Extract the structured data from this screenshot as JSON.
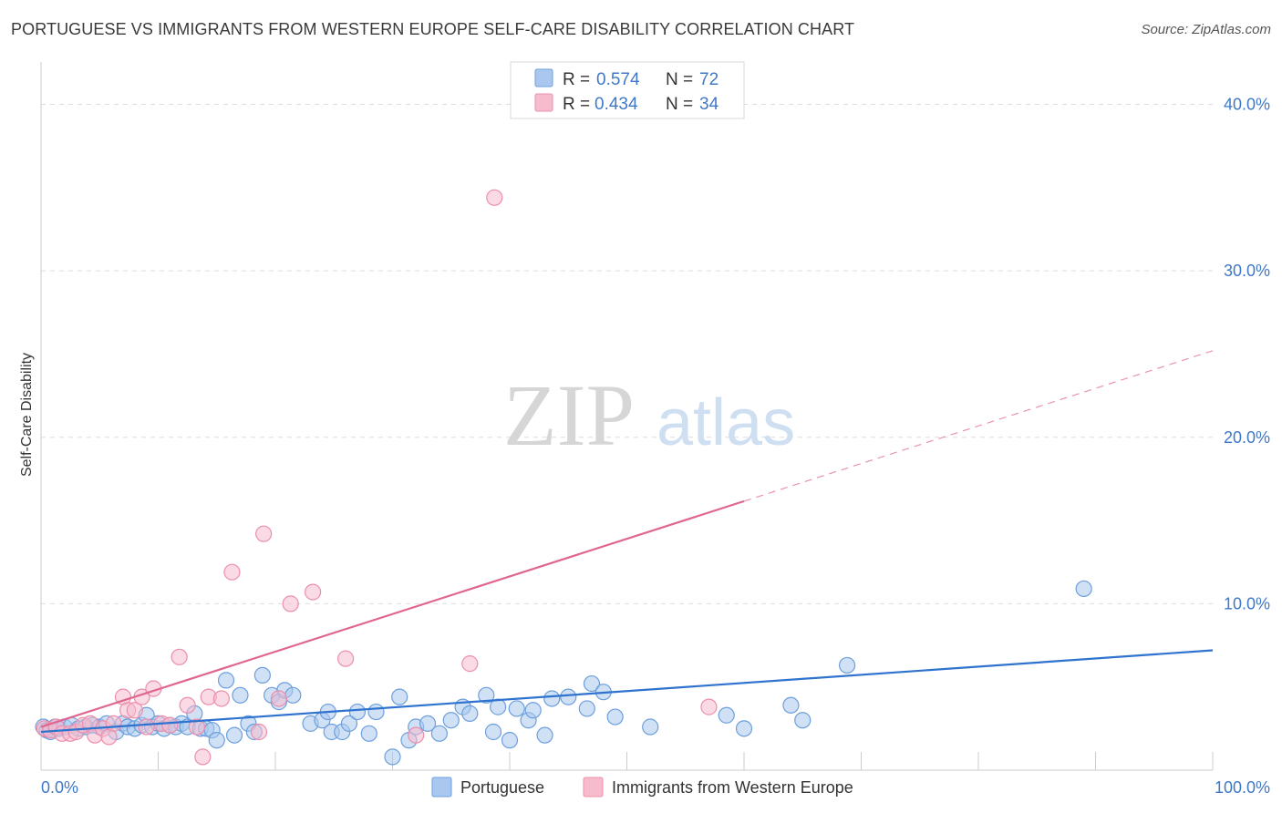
{
  "title": "PORTUGUESE VS IMMIGRANTS FROM WESTERN EUROPE SELF-CARE DISABILITY CORRELATION CHART",
  "source": "Source: ZipAtlas.com",
  "watermark": {
    "part1": "ZIP",
    "part2": "atlas"
  },
  "colors": {
    "blue_fill": "#aac8ef",
    "blue_stroke": "#6d9fdc",
    "blue_line": "#2f73cf",
    "pink_fill": "#f6bccd",
    "pink_stroke": "#ec8fab",
    "pink_line": "#e06690",
    "accent_text": "#3f78c9",
    "grid": "#dddddd"
  },
  "legend": {
    "rows": [
      {
        "r_label": "R =",
        "r_value": "0.574",
        "n_label": "N =",
        "n_value": "72",
        "color": "blue"
      },
      {
        "r_label": "R =",
        "r_value": "0.434",
        "n_label": "N =",
        "n_value": "34",
        "color": "pink"
      }
    ]
  },
  "bottom_legend": [
    {
      "label": "Portuguese",
      "color": "blue"
    },
    {
      "label": "Immigrants from Western Europe",
      "color": "pink"
    }
  ],
  "chart_data": {
    "type": "scatter",
    "title": "PORTUGUESE VS IMMIGRANTS FROM WESTERN EUROPE SELF-CARE DISABILITY CORRELATION CHART",
    "xlabel": "",
    "ylabel": "Self-Care Disability",
    "xlim": [
      0,
      100
    ],
    "ylim": [
      0,
      42
    ],
    "x_tick_labels": {
      "left": "0.0%",
      "right": "100.0%"
    },
    "y_ticks": [
      {
        "value": 10,
        "label": "10.0%"
      },
      {
        "value": 20,
        "label": "20.0%"
      },
      {
        "value": 30,
        "label": "30.0%"
      },
      {
        "value": 40,
        "label": "40.0%"
      }
    ],
    "x_minor_ticks": [
      10,
      20,
      30,
      40,
      50,
      60,
      70,
      80,
      90,
      100
    ],
    "grid": true,
    "series": [
      {
        "name": "Portuguese",
        "color": "blue",
        "R": 0.574,
        "N": 72,
        "trend": {
          "x0": 0,
          "y0": 2.3,
          "x1": 100,
          "y1": 7.2,
          "dashed_from": null
        },
        "points": [
          [
            0.2,
            2.6
          ],
          [
            0.5,
            2.4
          ],
          [
            0.8,
            2.3
          ],
          [
            1.2,
            2.6
          ],
          [
            1.5,
            2.5
          ],
          [
            2.0,
            2.6
          ],
          [
            2.6,
            2.7
          ],
          [
            3.2,
            2.5
          ],
          [
            3.8,
            2.6
          ],
          [
            4.4,
            2.7
          ],
          [
            5.0,
            2.6
          ],
          [
            5.6,
            2.8
          ],
          [
            6.4,
            2.3
          ],
          [
            7.0,
            2.8
          ],
          [
            7.4,
            2.6
          ],
          [
            8.0,
            2.5
          ],
          [
            8.6,
            2.7
          ],
          [
            9.0,
            3.3
          ],
          [
            9.5,
            2.6
          ],
          [
            10.0,
            2.8
          ],
          [
            10.5,
            2.5
          ],
          [
            11.0,
            2.7
          ],
          [
            11.5,
            2.6
          ],
          [
            12.0,
            2.8
          ],
          [
            12.5,
            2.6
          ],
          [
            13.1,
            3.4
          ],
          [
            13.6,
            2.5
          ],
          [
            14.1,
            2.5
          ],
          [
            14.6,
            2.4
          ],
          [
            15.0,
            1.8
          ],
          [
            15.8,
            5.4
          ],
          [
            16.5,
            2.1
          ],
          [
            17.0,
            4.5
          ],
          [
            17.7,
            2.8
          ],
          [
            18.2,
            2.3
          ],
          [
            18.9,
            5.7
          ],
          [
            19.7,
            4.5
          ],
          [
            20.3,
            4.1
          ],
          [
            20.8,
            4.8
          ],
          [
            21.5,
            4.5
          ],
          [
            23.0,
            2.8
          ],
          [
            24.0,
            3.0
          ],
          [
            24.5,
            3.5
          ],
          [
            24.8,
            2.3
          ],
          [
            25.7,
            2.3
          ],
          [
            26.3,
            2.8
          ],
          [
            27.0,
            3.5
          ],
          [
            28.0,
            2.2
          ],
          [
            28.6,
            3.5
          ],
          [
            30.0,
            0.8
          ],
          [
            30.6,
            4.4
          ],
          [
            31.4,
            1.8
          ],
          [
            32.0,
            2.6
          ],
          [
            33.0,
            2.8
          ],
          [
            34.0,
            2.2
          ],
          [
            35.0,
            3.0
          ],
          [
            36.0,
            3.8
          ],
          [
            36.6,
            3.4
          ],
          [
            38.0,
            4.5
          ],
          [
            38.6,
            2.3
          ],
          [
            39.0,
            3.8
          ],
          [
            40.0,
            1.8
          ],
          [
            40.6,
            3.7
          ],
          [
            41.6,
            3.0
          ],
          [
            42.0,
            3.6
          ],
          [
            43.0,
            2.1
          ],
          [
            43.6,
            4.3
          ],
          [
            45.0,
            4.4
          ],
          [
            46.6,
            3.7
          ],
          [
            47.0,
            5.2
          ],
          [
            48.0,
            4.7
          ],
          [
            49.0,
            3.2
          ],
          [
            52.0,
            2.6
          ],
          [
            58.5,
            3.3
          ],
          [
            60.0,
            2.5
          ],
          [
            64.0,
            3.9
          ],
          [
            65.0,
            3.0
          ],
          [
            68.8,
            6.3
          ],
          [
            89.0,
            10.9
          ]
        ]
      },
      {
        "name": "Immigrants from Western Europe",
        "color": "pink",
        "R": 0.434,
        "N": 34,
        "trend": {
          "x0": 0,
          "y0": 2.6,
          "x1": 100,
          "y1": 25.2,
          "dashed_from": 60
        },
        "points": [
          [
            0.3,
            2.5
          ],
          [
            0.8,
            2.4
          ],
          [
            1.3,
            2.6
          ],
          [
            1.8,
            2.2
          ],
          [
            2.5,
            2.2
          ],
          [
            3.0,
            2.3
          ],
          [
            3.6,
            2.7
          ],
          [
            4.2,
            2.8
          ],
          [
            4.6,
            2.1
          ],
          [
            5.3,
            2.5
          ],
          [
            5.8,
            2.0
          ],
          [
            6.2,
            2.8
          ],
          [
            7.0,
            4.4
          ],
          [
            7.4,
            3.6
          ],
          [
            8.0,
            3.6
          ],
          [
            8.6,
            4.4
          ],
          [
            9.0,
            2.6
          ],
          [
            9.6,
            4.9
          ],
          [
            10.3,
            2.8
          ],
          [
            11.0,
            2.7
          ],
          [
            11.8,
            6.8
          ],
          [
            12.5,
            3.9
          ],
          [
            13.3,
            2.6
          ],
          [
            13.8,
            0.8
          ],
          [
            14.3,
            4.4
          ],
          [
            15.4,
            4.3
          ],
          [
            16.3,
            11.9
          ],
          [
            18.6,
            2.3
          ],
          [
            19.0,
            14.2
          ],
          [
            20.3,
            4.3
          ],
          [
            21.3,
            10.0
          ],
          [
            23.2,
            10.7
          ],
          [
            26.0,
            6.7
          ],
          [
            32.0,
            2.1
          ],
          [
            36.6,
            6.4
          ],
          [
            38.7,
            34.4
          ],
          [
            57.0,
            3.8
          ]
        ]
      }
    ]
  }
}
